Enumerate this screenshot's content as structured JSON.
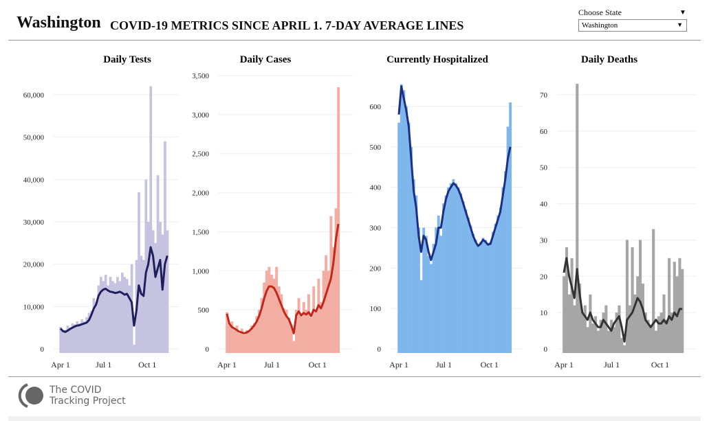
{
  "header": {
    "state": "Washington",
    "subtitle": "COVID-19 METRICS SINCE APRIL 1. 7-DAY AVERAGE LINES",
    "choose_label": "Choose State",
    "selected_state": "Washington"
  },
  "logo": {
    "line1": "The COVID",
    "line2": "Tracking Project"
  },
  "chart_data": [
    {
      "type": "bar",
      "title": "Daily Tests",
      "x_tick_labels": [
        "Apr 1",
        "Jul 1",
        "Oct 1"
      ],
      "x_tick_days": [
        0,
        91,
        183
      ],
      "x_step_days": 5,
      "y_ticks": [
        "0",
        "10,000",
        "20,000",
        "30,000",
        "40,000",
        "50,000",
        "60,000"
      ],
      "ylim": [
        0,
        60000
      ],
      "bar_color": "#c5c3e0",
      "line_color": "#1f1f5e",
      "daily": [
        5200,
        4000,
        4500,
        5500,
        5000,
        6000,
        5800,
        6500,
        6000,
        7000,
        6500,
        7500,
        8500,
        9000,
        12000,
        11000,
        15000,
        17000,
        16000,
        17500,
        15000,
        17000,
        16000,
        15500,
        17000,
        16000,
        18000,
        17000,
        16500,
        15000,
        20000,
        1000,
        21000,
        37000,
        22000,
        21000,
        40000,
        30000,
        62000,
        28000,
        25000,
        41000,
        30000,
        27000,
        49000,
        28000
      ],
      "avg7": [
        4800,
        4200,
        4000,
        4300,
        4700,
        5000,
        5300,
        5500,
        5600,
        5800,
        6000,
        6200,
        6800,
        8000,
        9500,
        10500,
        12500,
        13500,
        14000,
        14200,
        13800,
        13500,
        13400,
        13200,
        13300,
        13500,
        13200,
        12800,
        13000,
        12000,
        11000,
        5500,
        9000,
        15000,
        13000,
        12500,
        18000,
        20000,
        24000,
        22000,
        17000,
        19000,
        21000,
        14000,
        20000,
        22000
      ]
    },
    {
      "type": "bar",
      "title": "Daily Cases",
      "x_tick_labels": [
        "Apr 1",
        "Jul 1",
        "Oct 1"
      ],
      "x_tick_days": [
        0,
        91,
        183
      ],
      "x_step_days": 5,
      "y_ticks": [
        "0",
        "500",
        "1,000",
        "1,500",
        "2,000",
        "2,500",
        "3,000",
        "3,500"
      ],
      "ylim": [
        0,
        3500
      ],
      "bar_color": "#f2aea2",
      "line_color": "#c0281c",
      "daily": [
        470,
        300,
        350,
        240,
        300,
        200,
        260,
        180,
        240,
        230,
        300,
        330,
        420,
        500,
        650,
        850,
        1000,
        1050,
        950,
        900,
        1050,
        800,
        700,
        520,
        500,
        400,
        300,
        100,
        500,
        650,
        450,
        600,
        500,
        700,
        400,
        800,
        500,
        900,
        600,
        1000,
        1200,
        1000,
        1700,
        1300,
        1800,
        3350
      ],
      "avg7": [
        450,
        320,
        280,
        260,
        240,
        220,
        210,
        200,
        210,
        230,
        260,
        300,
        350,
        420,
        520,
        640,
        740,
        800,
        800,
        780,
        720,
        640,
        560,
        480,
        420,
        380,
        300,
        200,
        430,
        480,
        430,
        460,
        440,
        470,
        420,
        500,
        480,
        560,
        520,
        600,
        700,
        800,
        900,
        1100,
        1400,
        1600
      ]
    },
    {
      "type": "bar",
      "title": "Currently Hospitalized",
      "x_tick_labels": [
        "Apr 1",
        "Jul 1",
        "Oct 1"
      ],
      "x_tick_days": [
        0,
        91,
        183
      ],
      "x_step_days": 5,
      "y_ticks": [
        "0",
        "100",
        "200",
        "300",
        "400",
        "500",
        "600"
      ],
      "ylim": [
        0,
        600
      ],
      "bar_color": "#7fb6ec",
      "line_color": "#1c2f86",
      "daily": [
        560,
        655,
        640,
        600,
        560,
        500,
        420,
        380,
        300,
        170,
        300,
        280,
        230,
        210,
        260,
        300,
        330,
        280,
        360,
        380,
        400,
        410,
        420,
        410,
        400,
        385,
        365,
        345,
        325,
        305,
        285,
        270,
        255,
        265,
        275,
        270,
        262,
        265,
        290,
        310,
        330,
        350,
        400,
        440,
        550,
        610
      ],
      "avg7": [
        580,
        650,
        620,
        590,
        550,
        470,
        390,
        350,
        280,
        240,
        280,
        270,
        240,
        220,
        240,
        260,
        300,
        300,
        340,
        370,
        390,
        400,
        410,
        405,
        395,
        380,
        360,
        340,
        320,
        300,
        280,
        265,
        255,
        260,
        270,
        265,
        258,
        260,
        280,
        300,
        320,
        340,
        380,
        420,
        470,
        500
      ]
    },
    {
      "type": "bar",
      "title": "Daily Deaths",
      "x_tick_labels": [
        "Apr 1",
        "Jul 1",
        "Oct 1"
      ],
      "x_tick_days": [
        0,
        91,
        183
      ],
      "x_step_days": 5,
      "y_ticks": [
        "0",
        "10",
        "20",
        "30",
        "40",
        "50",
        "60",
        "70"
      ],
      "ylim": [
        0,
        70
      ],
      "bar_color": "#a6a6a6",
      "line_color": "#333333",
      "daily": [
        20,
        28,
        15,
        25,
        12,
        73,
        18,
        10,
        12,
        6,
        15,
        7,
        9,
        5,
        8,
        10,
        12,
        5,
        8,
        6,
        10,
        12,
        3,
        1,
        30,
        12,
        28,
        15,
        20,
        30,
        18,
        10,
        8,
        6,
        33,
        5,
        9,
        10,
        15,
        8,
        25,
        10,
        24,
        20,
        25,
        22
      ],
      "avg7": [
        21,
        25,
        20,
        17,
        14,
        22,
        15,
        10,
        9,
        8,
        10,
        8,
        7,
        6,
        6,
        8,
        7,
        6,
        5,
        7,
        8,
        9,
        6,
        2,
        8,
        9,
        10,
        12,
        14,
        13,
        11,
        8,
        7,
        6,
        7,
        8,
        7,
        7,
        8,
        7,
        9,
        8,
        10,
        9,
        11,
        11
      ]
    }
  ]
}
